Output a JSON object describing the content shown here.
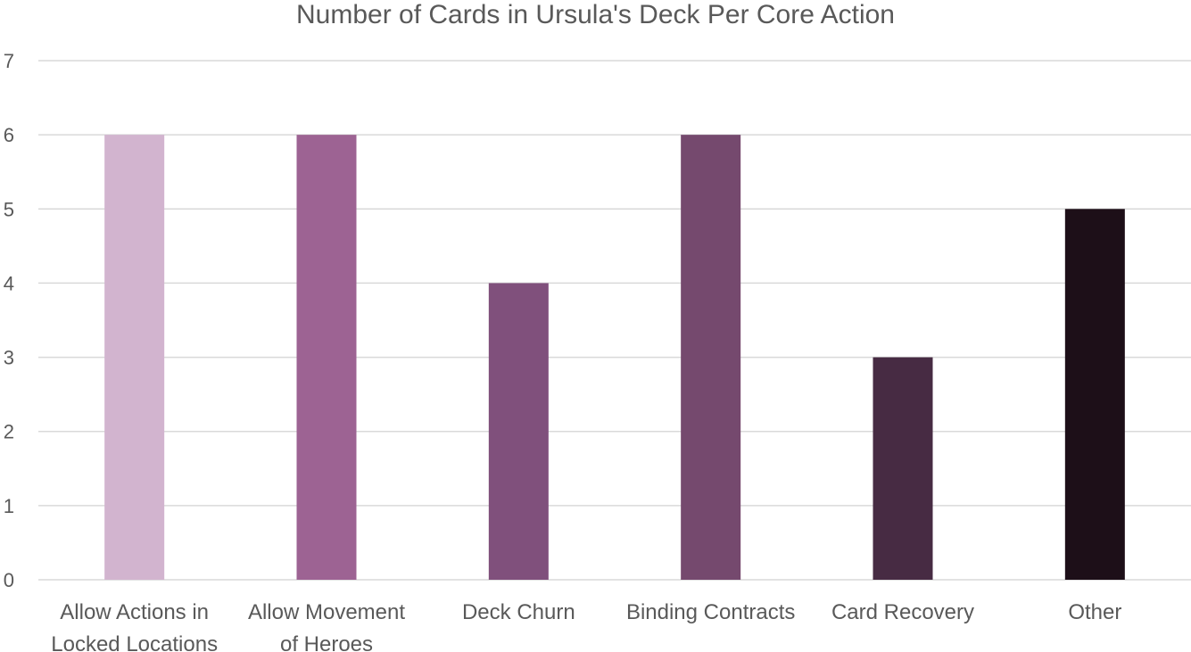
{
  "chart_data": {
    "type": "bar",
    "title": "Number of Cards in Ursula's Deck Per Core Action",
    "xlabel": "",
    "ylabel": "",
    "categories": [
      [
        "Allow Actions in",
        "Locked Locations"
      ],
      [
        "Allow Movement",
        "of Heroes"
      ],
      [
        "Deck Churn"
      ],
      [
        "Binding Contracts"
      ],
      [
        "Card Recovery"
      ],
      [
        "Other"
      ]
    ],
    "values": [
      6,
      6,
      4,
      6,
      3,
      5
    ],
    "colors": [
      "#d2b4cf",
      "#9d6393",
      "#80507c",
      "#75496e",
      "#472b43",
      "#1d0f18"
    ],
    "ylim": [
      0,
      7
    ],
    "yticks": [
      0,
      1,
      2,
      3,
      4,
      5,
      6,
      7
    ],
    "grid": true,
    "legend": "none"
  }
}
